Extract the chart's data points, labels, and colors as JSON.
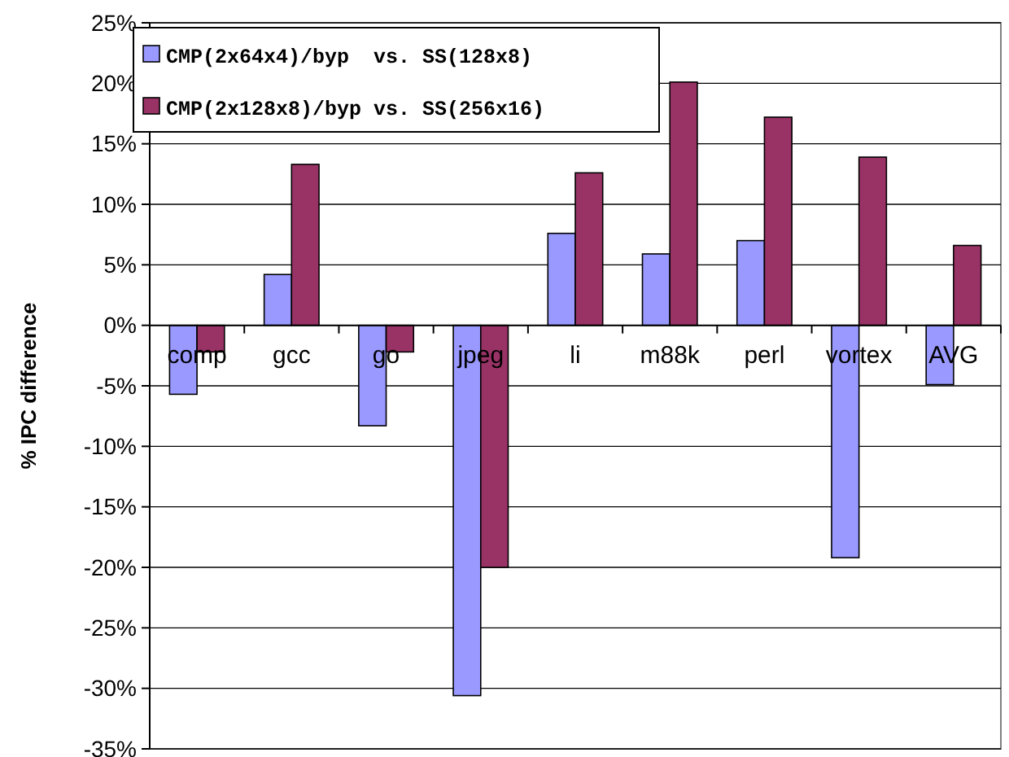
{
  "chart_data": {
    "type": "bar",
    "ylabel": "% IPC difference",
    "categories": [
      "comp",
      "gcc",
      "go",
      "jpeg",
      "li",
      "m88k",
      "perl",
      "vortex",
      "AVG"
    ],
    "series": [
      {
        "name": "CMP(2x64x4)/byp  vs. SS(128x8)",
        "color": "#9999ff",
        "values": [
          -5.7,
          4.2,
          -8.3,
          -30.6,
          7.6,
          5.9,
          7.0,
          -19.2,
          -4.9
        ]
      },
      {
        "name": "CMP(2x128x8)/byp vs. SS(256x16)",
        "color": "#993366",
        "values": [
          -2.2,
          13.3,
          -2.2,
          -20.0,
          12.6,
          20.1,
          17.2,
          13.9,
          6.6
        ]
      }
    ],
    "ylim": [
      -35,
      25
    ],
    "yticks": [
      {
        "value": -35,
        "label": "-35%"
      },
      {
        "value": -30,
        "label": "-30%"
      },
      {
        "value": -25,
        "label": "-25%"
      },
      {
        "value": -20,
        "label": "-20%"
      },
      {
        "value": -15,
        "label": "-15%"
      },
      {
        "value": -10,
        "label": "-10%"
      },
      {
        "value": -5,
        "label": "-5%"
      },
      {
        "value": 0,
        "label": "0%"
      },
      {
        "value": 5,
        "label": "5%"
      },
      {
        "value": 10,
        "label": "10%"
      },
      {
        "value": 15,
        "label": "15%"
      },
      {
        "value": 20,
        "label": "20%"
      },
      {
        "value": 25,
        "label": "25%"
      }
    ],
    "grid": "y",
    "legend": "top left"
  }
}
